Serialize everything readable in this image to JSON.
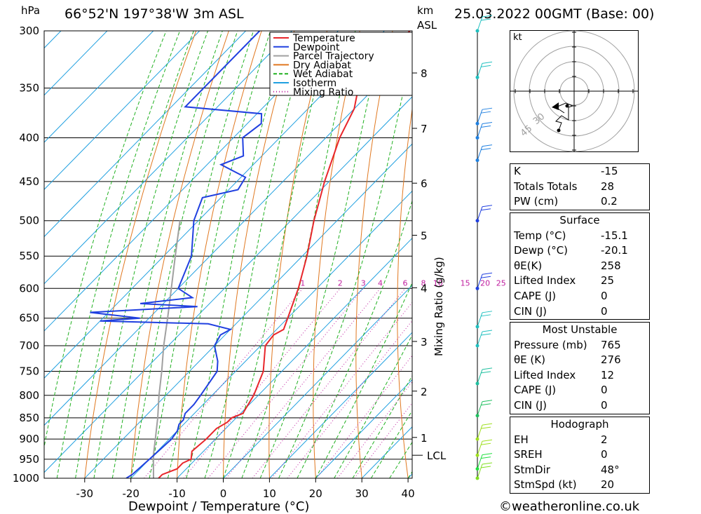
{
  "header": {
    "location": "66°52'N  197°38'W  3m  ASL",
    "date": "25.03.2022  00GMT  (Base: 00)",
    "hpa_unit": "hPa",
    "km_unit": "km",
    "asl_unit": "ASL"
  },
  "chart_data": {
    "type": "skew-t",
    "xlabel": "Dewpoint / Temperature (°C)",
    "right_axis_label": "Mixing Ratio (g/kg)",
    "x_ticks": [
      -30,
      -20,
      -10,
      0,
      10,
      20,
      30,
      40
    ],
    "xlim": [
      -40,
      40
    ],
    "pressure_levels": [
      300,
      350,
      400,
      450,
      500,
      550,
      600,
      650,
      700,
      750,
      800,
      850,
      900,
      950,
      1000
    ],
    "km_ticks": [
      {
        "km": 1,
        "p": 896
      },
      {
        "km": 2,
        "p": 791
      },
      {
        "km": 3,
        "p": 692
      },
      {
        "km": 4,
        "p": 599
      },
      {
        "km": 5,
        "p": 520
      },
      {
        "km": 6,
        "p": 452
      },
      {
        "km": 7,
        "p": 390
      },
      {
        "km": 8,
        "p": 336
      }
    ],
    "lcl": {
      "label": "LCL",
      "p": 940
    },
    "mixing_ratio_labels": [
      "1",
      "2",
      "3",
      "4",
      "6",
      "8",
      "10",
      "15",
      "20",
      "25"
    ],
    "legend": {
      "placement": "top-right",
      "entries": [
        {
          "name": "Temperature",
          "color": "#e8262b"
        },
        {
          "name": "Dewpoint",
          "color": "#2040e0"
        },
        {
          "name": "Parcel Trajectory",
          "color": "#a0a0a0"
        },
        {
          "name": "Dry Adiabat",
          "color": "#e07820"
        },
        {
          "name": "Wet Adiabat",
          "color": "#20b020"
        },
        {
          "name": "Isotherm",
          "color": "#20a0e0"
        },
        {
          "name": "Mixing Ratio",
          "color": "#c020a0"
        }
      ]
    },
    "temperature": [
      {
        "p": 1000,
        "t": -14.0
      },
      {
        "p": 990,
        "t": -14.0
      },
      {
        "p": 975,
        "t": -12.0
      },
      {
        "p": 960,
        "t": -12.0
      },
      {
        "p": 950,
        "t": -11.0
      },
      {
        "p": 930,
        "t": -12.5
      },
      {
        "p": 900,
        "t": -12.0
      },
      {
        "p": 875,
        "t": -12.0
      },
      {
        "p": 860,
        "t": -11.0
      },
      {
        "p": 850,
        "t": -11.0
      },
      {
        "p": 840,
        "t": -9.5
      },
      {
        "p": 800,
        "t": -11.0
      },
      {
        "p": 750,
        "t": -14.0
      },
      {
        "p": 700,
        "t": -19.0
      },
      {
        "p": 680,
        "t": -19.5
      },
      {
        "p": 670,
        "t": -18.5
      },
      {
        "p": 650,
        "t": -20.0
      },
      {
        "p": 600,
        "t": -24.0
      },
      {
        "p": 550,
        "t": -29.0
      },
      {
        "p": 500,
        "t": -35.0
      },
      {
        "p": 450,
        "t": -41.0
      },
      {
        "p": 400,
        "t": -47.0
      },
      {
        "p": 370,
        "t": -50.0
      },
      {
        "p": 350,
        "t": -53.5
      },
      {
        "p": 330,
        "t": -56.0
      },
      {
        "p": 315,
        "t": -56.0
      },
      {
        "p": 305,
        "t": -54.5
      },
      {
        "p": 300,
        "t": -54.5
      }
    ],
    "dewpoint": [
      {
        "p": 1000,
        "t": -21.0
      },
      {
        "p": 990,
        "t": -20.5
      },
      {
        "p": 950,
        "t": -20.0
      },
      {
        "p": 900,
        "t": -19.5
      },
      {
        "p": 880,
        "t": -20.0
      },
      {
        "p": 865,
        "t": -21.0
      },
      {
        "p": 855,
        "t": -21.0
      },
      {
        "p": 840,
        "t": -22.0
      },
      {
        "p": 820,
        "t": -22.0
      },
      {
        "p": 800,
        "t": -22.5
      },
      {
        "p": 750,
        "t": -24.0
      },
      {
        "p": 730,
        "t": -26.0
      },
      {
        "p": 700,
        "t": -30.0
      },
      {
        "p": 680,
        "t": -31.0
      },
      {
        "p": 670,
        "t": -30.0
      },
      {
        "p": 660,
        "t": -36.0
      },
      {
        "p": 655,
        "t": -60.0
      },
      {
        "p": 650,
        "t": -52.0
      },
      {
        "p": 640,
        "t": -64.0
      },
      {
        "p": 630,
        "t": -42.0
      },
      {
        "p": 625,
        "t": -55.0
      },
      {
        "p": 615,
        "t": -45.0
      },
      {
        "p": 600,
        "t": -50.0
      },
      {
        "p": 550,
        "t": -54.0
      },
      {
        "p": 500,
        "t": -61.0
      },
      {
        "p": 470,
        "t": -64.0
      },
      {
        "p": 460,
        "t": -58.0
      },
      {
        "p": 445,
        "t": -59.0
      },
      {
        "p": 430,
        "t": -67.0
      },
      {
        "p": 420,
        "t": -64.0
      },
      {
        "p": 400,
        "t": -68.0
      },
      {
        "p": 385,
        "t": -67.0
      },
      {
        "p": 375,
        "t": -69.0
      },
      {
        "p": 368,
        "t": -87.0
      },
      {
        "p": 350,
        "t": -87.0
      },
      {
        "p": 300,
        "t": -87.0
      }
    ],
    "parcel": [
      {
        "p": 1000,
        "t": -15.1
      },
      {
        "p": 940,
        "t": -20.0
      },
      {
        "p": 900,
        "t": -23.0
      },
      {
        "p": 850,
        "t": -27.0
      },
      {
        "p": 800,
        "t": -31.5
      },
      {
        "p": 750,
        "t": -36.0
      },
      {
        "p": 700,
        "t": -41.0
      },
      {
        "p": 650,
        "t": -46.0
      },
      {
        "p": 600,
        "t": -51.5
      },
      {
        "p": 550,
        "t": -57.5
      },
      {
        "p": 500,
        "t": -64.0
      }
    ]
  },
  "hodograph": {
    "unit": "kt",
    "ring_labels": [
      "30",
      "45"
    ]
  },
  "indices": {
    "top": [
      {
        "label": "K",
        "value": "-15"
      },
      {
        "label": "Totals Totals",
        "value": "28"
      },
      {
        "label": "PW (cm)",
        "value": "0.2"
      }
    ],
    "surface": {
      "title": "Surface",
      "rows": [
        {
          "label": "Temp (°C)",
          "value": "-15.1"
        },
        {
          "label": "Dewp (°C)",
          "value": "-20.1"
        },
        {
          "label": "θE(K)",
          "value": "258"
        },
        {
          "label": "Lifted Index",
          "value": "25"
        },
        {
          "label": "CAPE (J)",
          "value": "0"
        },
        {
          "label": "CIN (J)",
          "value": "0"
        }
      ]
    },
    "unstable": {
      "title": "Most Unstable",
      "rows": [
        {
          "label": "Pressure (mb)",
          "value": "765"
        },
        {
          "label": "θE (K)",
          "value": "276"
        },
        {
          "label": "Lifted Index",
          "value": "12"
        },
        {
          "label": "CAPE (J)",
          "value": "0"
        },
        {
          "label": "CIN (J)",
          "value": "0"
        }
      ]
    },
    "hodo": {
      "title": "Hodograph",
      "rows": [
        {
          "label": "EH",
          "value": "2"
        },
        {
          "label": "SREH",
          "value": "0"
        },
        {
          "label": "StmDir",
          "value": "48°"
        },
        {
          "label": "StmSpd (kt)",
          "value": "20"
        }
      ]
    }
  },
  "footer": {
    "copyright": "©weatheronline.co.uk"
  },
  "colors": {
    "temperature": "#e8262b",
    "dewpoint": "#2040e0",
    "parcel": "#a0a0a0",
    "dry": "#e07820",
    "wet": "#20b020",
    "iso": "#20a0e0",
    "mix": "#c020a0"
  }
}
